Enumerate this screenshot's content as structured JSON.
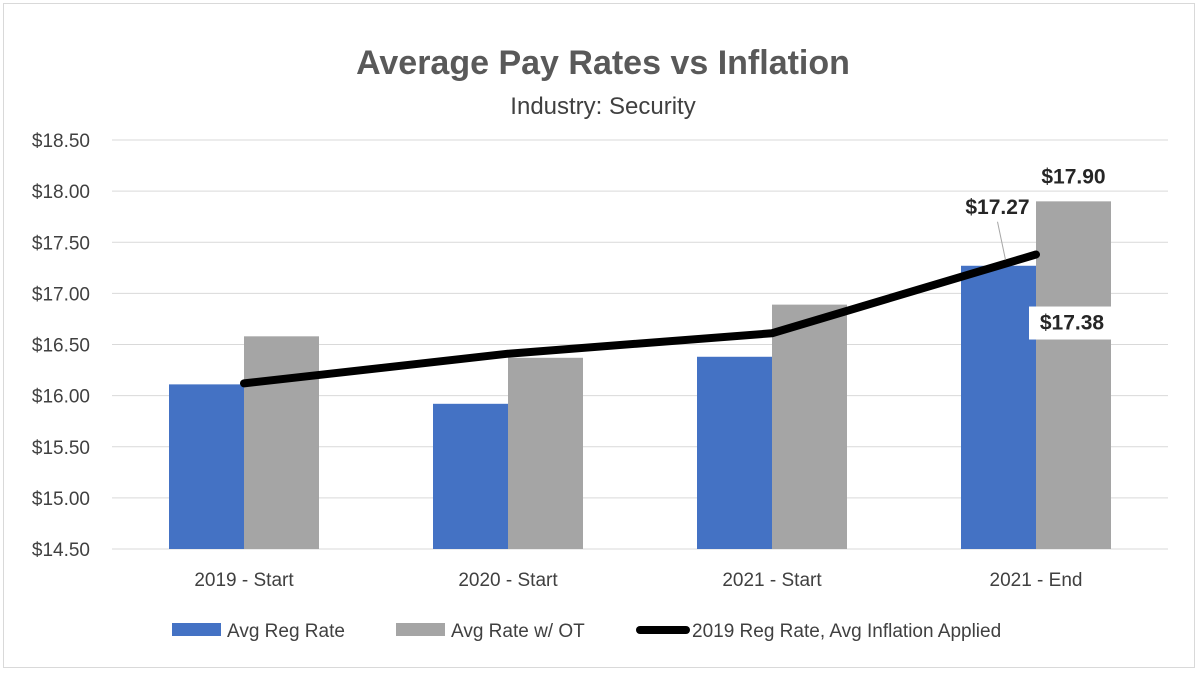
{
  "chart_data": {
    "type": "bar",
    "title": "Average Pay Rates vs Inflation",
    "subtitle": "Industry: Security",
    "categories": [
      "2019 - Start",
      "2020 - Start",
      "2021 - Start",
      "2021 - End"
    ],
    "series": [
      {
        "name": "Avg Reg Rate",
        "type": "bar",
        "color": "#4472c4",
        "values": [
          16.11,
          15.92,
          16.38,
          17.27
        ]
      },
      {
        "name": "Avg Rate w/ OT",
        "type": "bar",
        "color": "#a5a5a5",
        "values": [
          16.58,
          16.37,
          16.89,
          17.9
        ]
      },
      {
        "name": "2019 Reg Rate, Avg Inflation Applied",
        "type": "line",
        "color": "#000000",
        "values": [
          16.12,
          16.41,
          16.61,
          17.38
        ]
      }
    ],
    "ylim": [
      14.5,
      18.5
    ],
    "yticks": [
      14.5,
      15.0,
      15.5,
      16.0,
      16.5,
      17.0,
      17.5,
      18.0,
      18.5
    ],
    "ytick_labels": [
      "$14.50",
      "$15.00",
      "$15.50",
      "$16.00",
      "$16.50",
      "$17.00",
      "$17.50",
      "$18.00",
      "$18.50"
    ],
    "grid": true,
    "legend_position": "bottom",
    "data_labels": [
      {
        "text": "$17.27",
        "series": "Avg Reg Rate",
        "category": "2021 - End"
      },
      {
        "text": "$17.90",
        "series": "Avg Rate w/ OT",
        "category": "2021 - End"
      },
      {
        "text": "$17.38",
        "series": "2019 Reg Rate, Avg Inflation Applied",
        "category": "2021 - End"
      }
    ]
  }
}
